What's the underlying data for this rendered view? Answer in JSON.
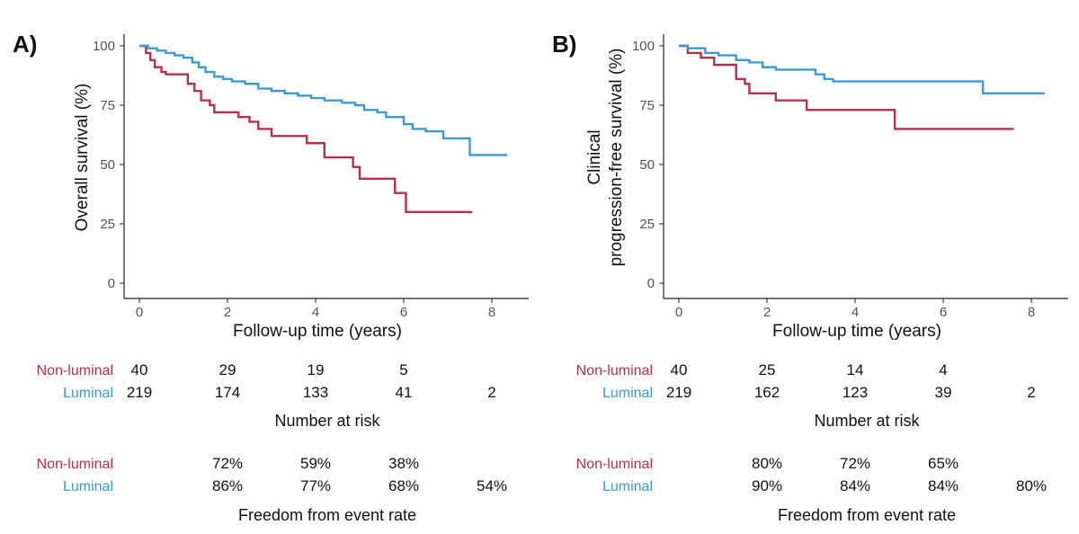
{
  "colors": {
    "non_luminal": "#b5304a",
    "luminal": "#3a9ad1",
    "axis": "#222222",
    "tick_label": "#555555"
  },
  "chart_data": [
    {
      "type": "line",
      "panel_label": "A)",
      "xlabel": "Follow-up time (years)",
      "ylabel": "Overall survival (%)",
      "xlim": [
        -0.35,
        8.7
      ],
      "ylim": [
        -5,
        105
      ],
      "x_ticks": [
        0,
        2,
        4,
        6,
        8
      ],
      "y_ticks": [
        0,
        25,
        50,
        75,
        100
      ],
      "grid": false,
      "series": [
        {
          "name": "Non-luminal",
          "color_key": "non_luminal",
          "x": [
            0,
            0.15,
            0.25,
            0.35,
            0.5,
            0.6,
            1.1,
            1.25,
            1.4,
            1.6,
            1.7,
            2.25,
            2.5,
            2.7,
            3.0,
            3.8,
            4.2,
            4.85,
            5.0,
            5.8,
            6.05,
            7.55
          ],
          "y": [
            100,
            97,
            94,
            91,
            89,
            88,
            84,
            81,
            77,
            75,
            72,
            70,
            68,
            65,
            62,
            59,
            53,
            49,
            44,
            38,
            30,
            30
          ]
        },
        {
          "name": "Luminal",
          "color_key": "luminal",
          "x": [
            0,
            0.2,
            0.4,
            0.6,
            0.8,
            1.0,
            1.2,
            1.35,
            1.5,
            1.7,
            1.9,
            2.1,
            2.4,
            2.7,
            3.0,
            3.3,
            3.6,
            3.9,
            4.2,
            4.6,
            4.9,
            5.1,
            5.4,
            5.6,
            6.0,
            6.2,
            6.5,
            6.9,
            7.5,
            8.35
          ],
          "y": [
            100,
            99,
            98,
            97,
            96,
            95,
            93,
            91,
            89,
            87,
            86,
            85,
            84,
            82,
            81,
            80,
            79,
            78,
            77,
            76,
            75,
            73,
            72,
            70,
            67,
            65,
            64,
            61,
            54,
            54
          ]
        }
      ]
    },
    {
      "type": "line",
      "panel_label": "B)",
      "xlabel": "Follow-up time (years)",
      "ylabel": [
        "Clinical",
        "progression-free survival (%)"
      ],
      "xlim": [
        -0.35,
        8.7
      ],
      "ylim": [
        -5,
        105
      ],
      "x_ticks": [
        0,
        2,
        4,
        6,
        8
      ],
      "y_ticks": [
        0,
        25,
        50,
        75,
        100
      ],
      "grid": false,
      "series": [
        {
          "name": "Non-luminal",
          "color_key": "non_luminal",
          "x": [
            0,
            0.2,
            0.5,
            0.8,
            1.3,
            1.5,
            1.6,
            2.2,
            2.9,
            4.9,
            7.6
          ],
          "y": [
            100,
            97,
            95,
            92,
            86,
            84,
            80,
            77,
            73,
            65,
            65
          ]
        },
        {
          "name": "Luminal",
          "color_key": "luminal",
          "x": [
            0,
            0.2,
            0.6,
            0.9,
            1.3,
            1.6,
            1.9,
            2.2,
            3.1,
            3.3,
            3.5,
            4.9,
            6.9,
            8.3
          ],
          "y": [
            100,
            99,
            97,
            96,
            94,
            93,
            91,
            90,
            88,
            86,
            85,
            85,
            80,
            80
          ]
        }
      ]
    }
  ],
  "tables": [
    {
      "at_risk": {
        "caption": "Number at risk",
        "rows": [
          {
            "label": "Non-luminal",
            "color_key": "non_luminal",
            "values": [
              "40",
              "29",
              "19",
              "5",
              ""
            ]
          },
          {
            "label": "Luminal",
            "color_key": "luminal",
            "values": [
              "219",
              "174",
              "133",
              "41",
              "2"
            ]
          }
        ]
      },
      "freedom": {
        "caption": "Freedom from event rate",
        "rows": [
          {
            "label": "Non-luminal",
            "color_key": "non_luminal",
            "values": [
              "",
              "72%",
              "59%",
              "38%",
              ""
            ]
          },
          {
            "label": "Luminal",
            "color_key": "luminal",
            "values": [
              "",
              "86%",
              "77%",
              "68%",
              "54%"
            ]
          }
        ]
      }
    },
    {
      "at_risk": {
        "caption": "Number at risk",
        "rows": [
          {
            "label": "Non-luminal",
            "color_key": "non_luminal",
            "values": [
              "40",
              "25",
              "14",
              "4",
              ""
            ]
          },
          {
            "label": "Luminal",
            "color_key": "luminal",
            "values": [
              "219",
              "162",
              "123",
              "39",
              "2"
            ]
          }
        ]
      },
      "freedom": {
        "caption": "Freedom from event rate",
        "rows": [
          {
            "label": "Non-luminal",
            "color_key": "non_luminal",
            "values": [
              "",
              "80%",
              "72%",
              "65%",
              ""
            ]
          },
          {
            "label": "Luminal",
            "color_key": "luminal",
            "values": [
              "",
              "90%",
              "84%",
              "84%",
              "80%"
            ]
          }
        ]
      }
    }
  ]
}
